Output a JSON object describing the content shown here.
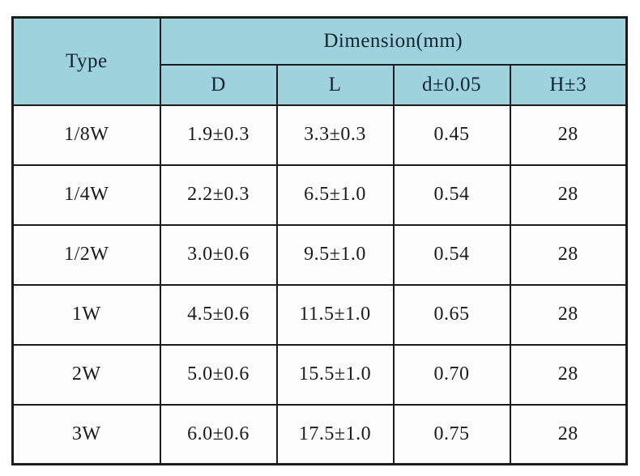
{
  "table": {
    "corner_header": "Type",
    "group_header": "Dimension(mm)",
    "columns": [
      "D",
      "L",
      "d±0.05",
      "H±3"
    ],
    "rows": [
      [
        "1/8W",
        "1.9±0.3",
        "3.3±0.3",
        "0.45",
        "28"
      ],
      [
        "1/4W",
        "2.2±0.3",
        "6.5±1.0",
        "0.54",
        "28"
      ],
      [
        "1/2W",
        "3.0±0.6",
        "9.5±1.0",
        "0.54",
        "28"
      ],
      [
        "1W",
        "4.5±0.6",
        "11.5±1.0",
        "0.65",
        "28"
      ],
      [
        "2W",
        "5.0±0.6",
        "15.5±1.0",
        "0.70",
        "28"
      ],
      [
        "3W",
        "6.0±0.6",
        "17.5±1.0",
        "0.75",
        "28"
      ]
    ],
    "colors": {
      "header_bg": "#9ed3de",
      "border": "#1c1c1c",
      "header_text": "#122433",
      "body_text": "#1b1b1b",
      "row_bg": "#fdfdfd",
      "page_bg": "#ffffff"
    }
  }
}
